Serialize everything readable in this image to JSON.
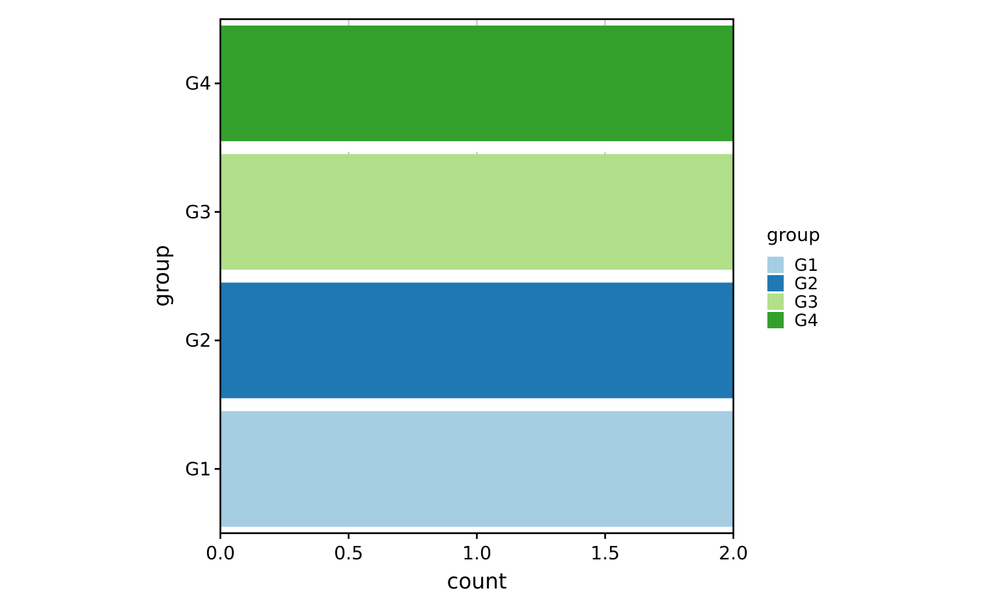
{
  "chart_data": {
    "type": "bar",
    "orientation": "horizontal",
    "categories": [
      "G1",
      "G2",
      "G3",
      "G4"
    ],
    "values": [
      2,
      2,
      2,
      2
    ],
    "colors": [
      "#a6cee3",
      "#1f78b4",
      "#b2df8a",
      "#33a02c"
    ],
    "xlabel": "count",
    "ylabel": "group",
    "xlim": [
      0,
      2
    ],
    "x_ticks": [
      "0.0",
      "0.5",
      "1.0",
      "1.5",
      "2.0"
    ],
    "grid": "vertical dashed",
    "legend": {
      "title": "group",
      "position": "right",
      "entries": [
        "G1",
        "G2",
        "G3",
        "G4"
      ]
    }
  }
}
